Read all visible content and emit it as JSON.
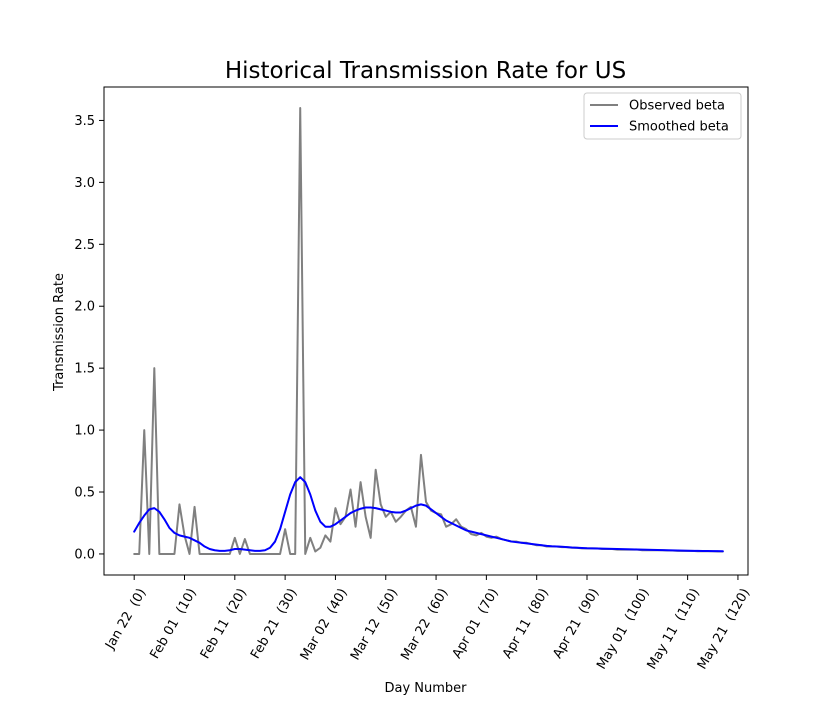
{
  "chart_data": {
    "type": "line",
    "title": "Historical Transmission Rate for US",
    "xlabel": "Day Number",
    "ylabel": "Transmission Rate",
    "xlim": [
      -6,
      122
    ],
    "ylim": [
      -0.17,
      3.77
    ],
    "grid": false,
    "legend_position": "top-right",
    "x_ticks": [
      {
        "value": 0,
        "label": "Jan 22  (0)"
      },
      {
        "value": 10,
        "label": "Feb 01  (10)"
      },
      {
        "value": 20,
        "label": "Feb 11  (20)"
      },
      {
        "value": 30,
        "label": "Feb 21  (30)"
      },
      {
        "value": 40,
        "label": "Mar 02  (40)"
      },
      {
        "value": 50,
        "label": "Mar 12  (50)"
      },
      {
        "value": 60,
        "label": "Mar 22  (60)"
      },
      {
        "value": 70,
        "label": "Apr 01  (70)"
      },
      {
        "value": 80,
        "label": "Apr 11  (80)"
      },
      {
        "value": 90,
        "label": "Apr 21  (90)"
      },
      {
        "value": 100,
        "label": "May 01  (100)"
      },
      {
        "value": 110,
        "label": "May 11  (110)"
      },
      {
        "value": 120,
        "label": "May 21  (120)"
      }
    ],
    "y_ticks": [
      {
        "value": 0.0,
        "label": "0.0"
      },
      {
        "value": 0.5,
        "label": "0.5"
      },
      {
        "value": 1.0,
        "label": "1.0"
      },
      {
        "value": 1.5,
        "label": "1.5"
      },
      {
        "value": 2.0,
        "label": "2.0"
      },
      {
        "value": 2.5,
        "label": "2.5"
      },
      {
        "value": 3.0,
        "label": "3.0"
      },
      {
        "value": 3.5,
        "label": "3.5"
      }
    ],
    "series": [
      {
        "name": "Observed beta",
        "color": "#808080",
        "x": [
          0,
          1,
          2,
          3,
          4,
          5,
          6,
          7,
          8,
          9,
          10,
          11,
          12,
          13,
          14,
          15,
          16,
          17,
          18,
          19,
          20,
          21,
          22,
          23,
          24,
          25,
          26,
          27,
          28,
          29,
          30,
          31,
          32,
          33,
          34,
          35,
          36,
          37,
          38,
          39,
          40,
          41,
          42,
          43,
          44,
          45,
          46,
          47,
          48,
          49,
          50,
          51,
          52,
          53,
          54,
          55,
          56,
          57,
          58,
          59,
          60,
          61,
          62,
          63,
          64,
          65,
          66,
          67,
          68,
          69,
          70,
          71,
          72,
          73,
          74,
          75,
          76,
          77,
          78,
          79,
          80,
          81,
          82,
          83,
          84,
          85,
          86,
          87,
          88,
          89,
          90,
          91,
          92,
          93,
          94,
          95,
          96,
          97,
          98,
          99,
          100,
          101,
          102,
          103,
          104,
          105,
          106,
          107,
          108,
          109,
          110,
          111,
          112,
          113,
          114,
          115,
          116,
          117
        ],
        "y": [
          0.0,
          0.0,
          1.0,
          0.0,
          1.5,
          0.0,
          0.0,
          0.0,
          0.0,
          0.4,
          0.15,
          0.0,
          0.38,
          0.0,
          0.0,
          0.0,
          0.0,
          0.0,
          0.0,
          0.0,
          0.13,
          0.0,
          0.12,
          0.0,
          0.0,
          0.0,
          0.0,
          0.0,
          0.0,
          0.0,
          0.2,
          0.0,
          0.0,
          3.6,
          0.0,
          0.13,
          0.02,
          0.05,
          0.15,
          0.1,
          0.37,
          0.24,
          0.3,
          0.52,
          0.22,
          0.58,
          0.3,
          0.13,
          0.68,
          0.4,
          0.3,
          0.34,
          0.26,
          0.3,
          0.35,
          0.38,
          0.22,
          0.8,
          0.42,
          0.35,
          0.33,
          0.32,
          0.22,
          0.24,
          0.28,
          0.22,
          0.2,
          0.16,
          0.15,
          0.17,
          0.14,
          0.13,
          0.14,
          0.12,
          0.11,
          0.1,
          0.1,
          0.09,
          0.09,
          0.08,
          0.07,
          0.07,
          0.06,
          0.06,
          0.06,
          0.055,
          0.055,
          0.05,
          0.05,
          0.045,
          0.045,
          0.045,
          0.045,
          0.04,
          0.04,
          0.04,
          0.035,
          0.035,
          0.035,
          0.035,
          0.035,
          0.03,
          0.03,
          0.03,
          0.03,
          0.03,
          0.028,
          0.028,
          0.025,
          0.025,
          0.025,
          0.025,
          0.022,
          0.022,
          0.022,
          0.022,
          0.02,
          0.02
        ]
      },
      {
        "name": "Smoothed beta",
        "color": "#0000ff",
        "x": [
          0,
          1,
          2,
          3,
          4,
          5,
          6,
          7,
          8,
          9,
          10,
          11,
          12,
          13,
          14,
          15,
          16,
          17,
          18,
          19,
          20,
          21,
          22,
          23,
          24,
          25,
          26,
          27,
          28,
          29,
          30,
          31,
          32,
          33,
          34,
          35,
          36,
          37,
          38,
          39,
          40,
          41,
          42,
          43,
          44,
          45,
          46,
          47,
          48,
          49,
          50,
          51,
          52,
          53,
          54,
          55,
          56,
          57,
          58,
          59,
          60,
          61,
          62,
          63,
          64,
          65,
          66,
          67,
          68,
          69,
          70,
          71,
          72,
          73,
          74,
          75,
          76,
          77,
          78,
          79,
          80,
          81,
          82,
          83,
          84,
          85,
          86,
          87,
          88,
          89,
          90,
          91,
          92,
          93,
          94,
          95,
          96,
          97,
          98,
          99,
          100,
          101,
          102,
          103,
          104,
          105,
          106,
          107,
          108,
          109,
          110,
          111,
          112,
          113,
          114,
          115,
          116,
          117
        ],
        "y": [
          0.18,
          0.25,
          0.31,
          0.36,
          0.37,
          0.34,
          0.28,
          0.21,
          0.17,
          0.15,
          0.14,
          0.13,
          0.11,
          0.09,
          0.06,
          0.04,
          0.03,
          0.025,
          0.025,
          0.03,
          0.04,
          0.04,
          0.035,
          0.03,
          0.025,
          0.025,
          0.03,
          0.05,
          0.1,
          0.2,
          0.34,
          0.48,
          0.58,
          0.62,
          0.58,
          0.48,
          0.35,
          0.26,
          0.22,
          0.22,
          0.24,
          0.27,
          0.3,
          0.33,
          0.35,
          0.365,
          0.375,
          0.375,
          0.37,
          0.36,
          0.35,
          0.34,
          0.335,
          0.335,
          0.35,
          0.37,
          0.39,
          0.4,
          0.39,
          0.36,
          0.33,
          0.3,
          0.27,
          0.25,
          0.23,
          0.21,
          0.19,
          0.18,
          0.17,
          0.16,
          0.15,
          0.14,
          0.13,
          0.12,
          0.11,
          0.1,
          0.095,
          0.09,
          0.085,
          0.08,
          0.075,
          0.07,
          0.065,
          0.062,
          0.06,
          0.058,
          0.055,
          0.052,
          0.05,
          0.048,
          0.046,
          0.045,
          0.044,
          0.043,
          0.042,
          0.041,
          0.04,
          0.039,
          0.038,
          0.037,
          0.036,
          0.035,
          0.034,
          0.033,
          0.032,
          0.031,
          0.03,
          0.029,
          0.028,
          0.027,
          0.026,
          0.025,
          0.025,
          0.024,
          0.024,
          0.023,
          0.023,
          0.022
        ]
      }
    ]
  }
}
